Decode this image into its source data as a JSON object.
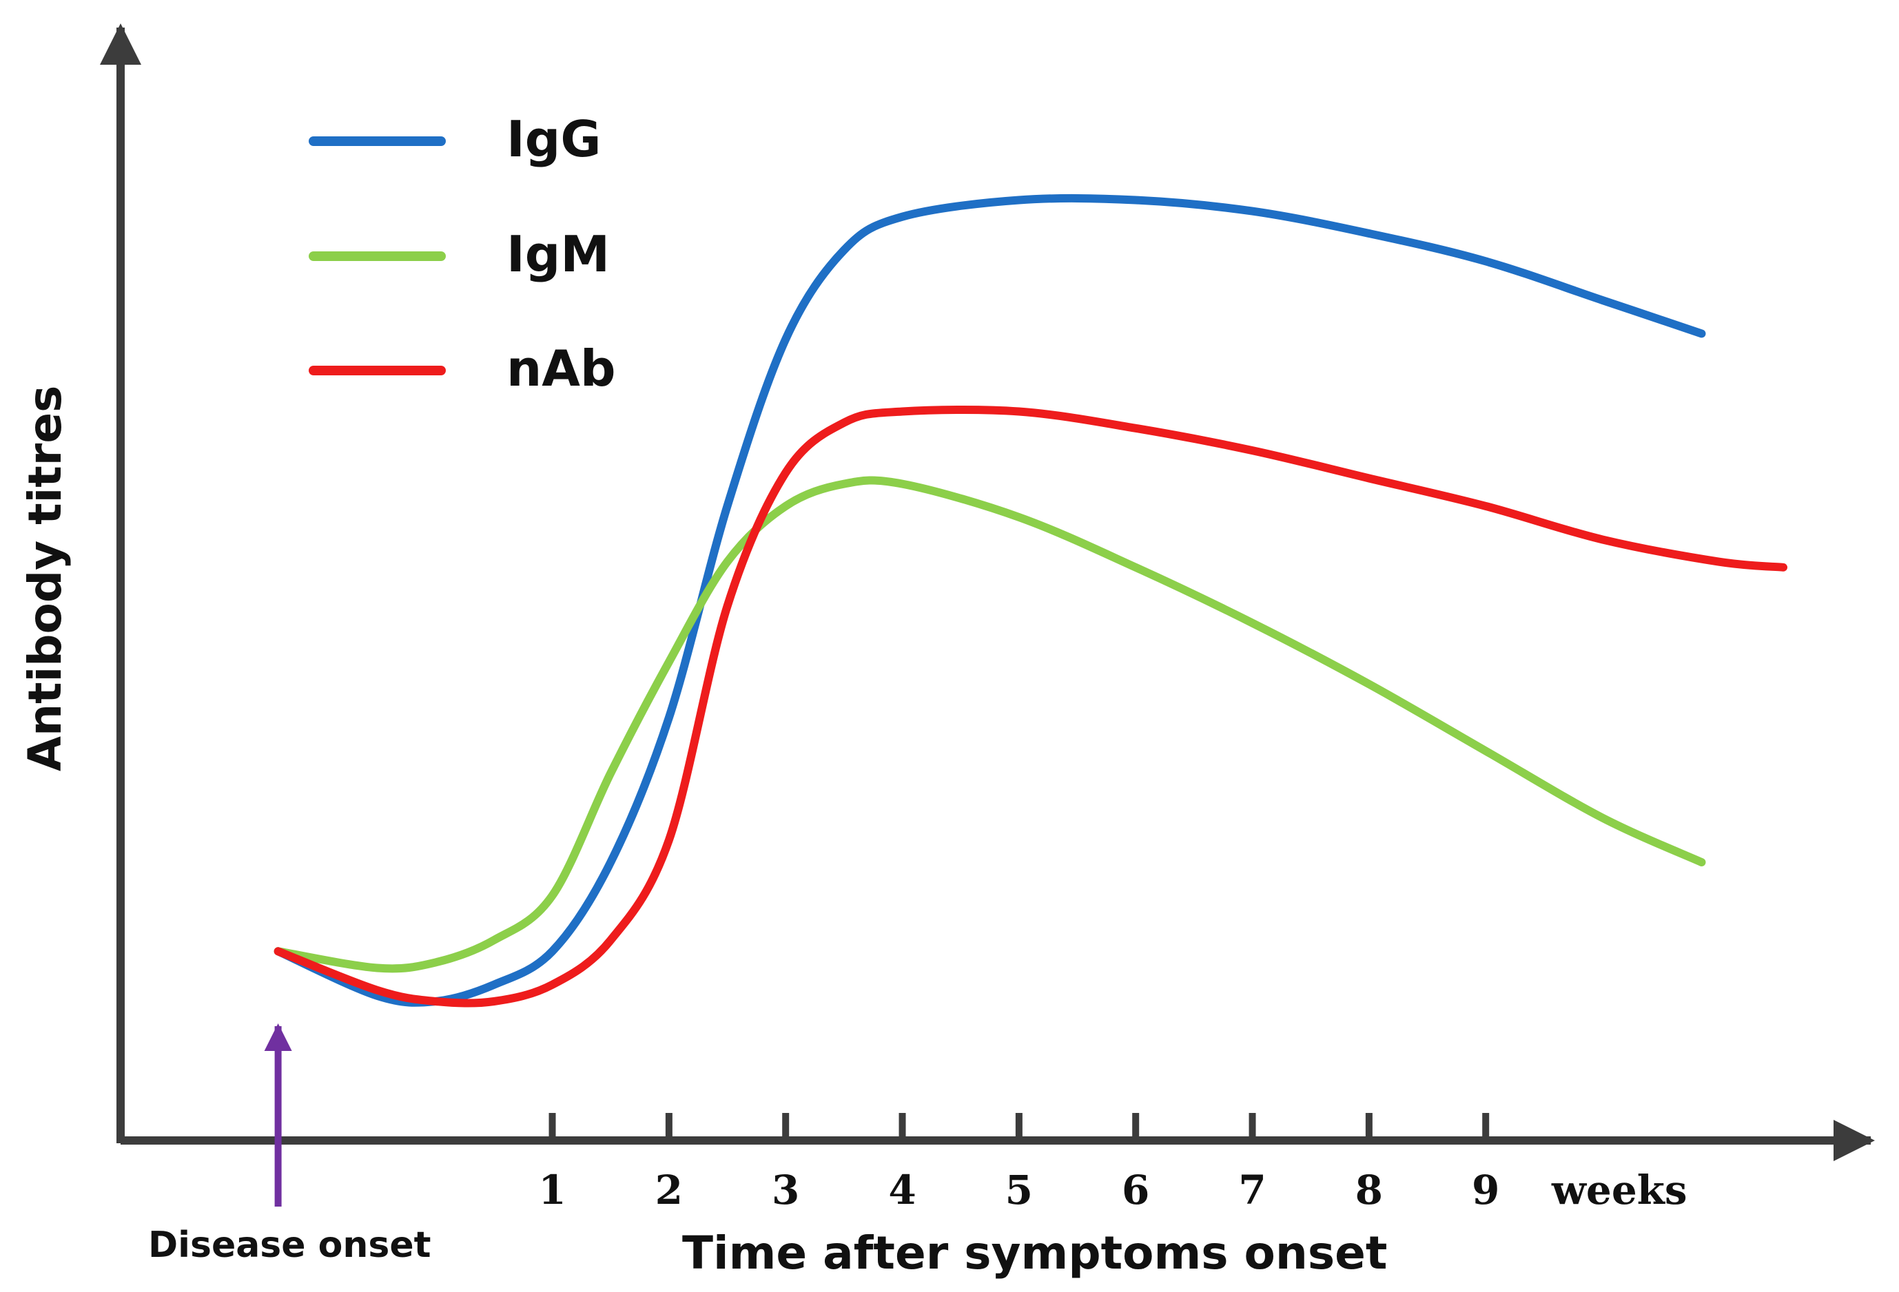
{
  "chart_data": {
    "type": "line",
    "title": "",
    "xlabel": "Time after symptoms onset",
    "ylabel": "Antibody titres",
    "x_unit_label": "weeks",
    "x_ticks": [
      1,
      2,
      3,
      4,
      5,
      6,
      7,
      8,
      9
    ],
    "xlim": [
      -2.7,
      12.3
    ],
    "ylim": [
      0,
      100
    ],
    "grid": false,
    "legend_position": "top-left",
    "annotation": {
      "label": "Disease onset",
      "x": -1.35,
      "color": "#7030a0"
    },
    "series": [
      {
        "name": "IgG",
        "color": "#1f6fc5",
        "points": [
          [
            -1.35,
            17
          ],
          [
            -0.5,
            13
          ],
          [
            0,
            12.5
          ],
          [
            0.5,
            14
          ],
          [
            1,
            17
          ],
          [
            1.5,
            25
          ],
          [
            2,
            38
          ],
          [
            2.5,
            57
          ],
          [
            3,
            72
          ],
          [
            3.5,
            80
          ],
          [
            4,
            83
          ],
          [
            5,
            84.5
          ],
          [
            6,
            84.5
          ],
          [
            7,
            83.5
          ],
          [
            8,
            81.5
          ],
          [
            9,
            79
          ],
          [
            10,
            75.5
          ],
          [
            10.85,
            72.5
          ]
        ]
      },
      {
        "name": "IgM",
        "color": "#8ccf4a",
        "points": [
          [
            -1.35,
            17
          ],
          [
            -0.5,
            15.5
          ],
          [
            0,
            16
          ],
          [
            0.5,
            18
          ],
          [
            1,
            22
          ],
          [
            1.5,
            33
          ],
          [
            2,
            43
          ],
          [
            2.5,
            52
          ],
          [
            3,
            57
          ],
          [
            3.5,
            59
          ],
          [
            4,
            59
          ],
          [
            5,
            56
          ],
          [
            6,
            51.5
          ],
          [
            7,
            46.5
          ],
          [
            8,
            41
          ],
          [
            9,
            35
          ],
          [
            10,
            29
          ],
          [
            10.85,
            25
          ]
        ]
      },
      {
        "name": "nAb",
        "color": "#ee1c1c",
        "points": [
          [
            -1.35,
            17
          ],
          [
            -0.5,
            13.5
          ],
          [
            0,
            12.5
          ],
          [
            0.5,
            12.5
          ],
          [
            1,
            14
          ],
          [
            1.5,
            18
          ],
          [
            2,
            27
          ],
          [
            2.5,
            48
          ],
          [
            3,
            60
          ],
          [
            3.5,
            64.5
          ],
          [
            4,
            65.5
          ],
          [
            5,
            65.5
          ],
          [
            6,
            64
          ],
          [
            7,
            62
          ],
          [
            8,
            59.5
          ],
          [
            9,
            57
          ],
          [
            10,
            54
          ],
          [
            11,
            52
          ],
          [
            11.55,
            51.5
          ]
        ]
      }
    ]
  }
}
